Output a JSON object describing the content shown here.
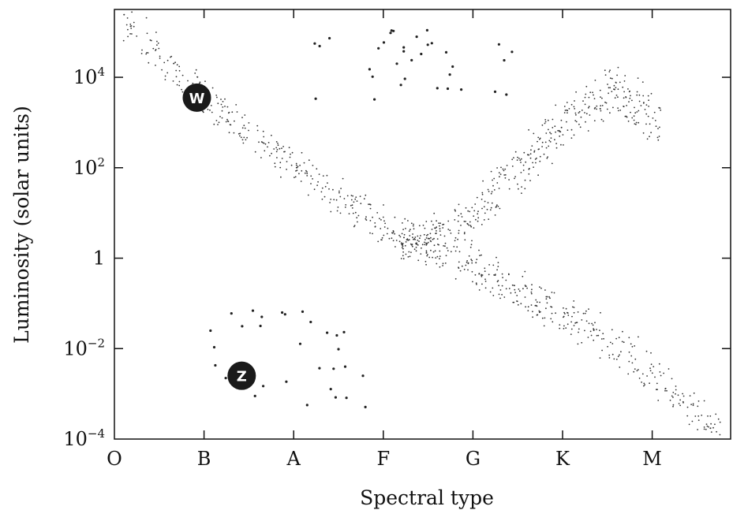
{
  "chart_data": {
    "type": "scatter",
    "title": "",
    "xlabel": "Spectral type",
    "ylabel": "Luminosity (solar units)",
    "x_categories": [
      "O",
      "B",
      "A",
      "F",
      "G",
      "K",
      "M"
    ],
    "x_range": [
      0,
      6.9
    ],
    "y_scale": "log",
    "y_range_log10": [
      -4,
      5.5
    ],
    "y_ticks": [
      {
        "base": "10",
        "exp": "4",
        "log10": 4
      },
      {
        "base": "10",
        "exp": "2",
        "log10": 2
      },
      {
        "base": "1",
        "exp": "",
        "log10": 0
      },
      {
        "base": "10",
        "exp": "−2",
        "log10": -2
      },
      {
        "base": "10",
        "exp": "−4",
        "log10": -4
      }
    ],
    "markers": [
      {
        "label": "W",
        "x": 0.92,
        "log10L": 3.55
      },
      {
        "label": "Z",
        "x": 1.42,
        "log10L": -2.6
      }
    ],
    "groups": [
      {
        "name": "supergiants",
        "x_range": [
          2.2,
          4.45
        ],
        "log10L_range": [
          3.5,
          5.1
        ],
        "count": 34,
        "size": "large"
      },
      {
        "name": "white-dwarfs",
        "x_range": [
          0.9,
          2.8
        ],
        "log10L_range": [
          -3.3,
          -1.0
        ],
        "count": 30,
        "size": "large"
      },
      {
        "name": "main-sequence",
        "path": [
          [
            0.1,
            5.3
          ],
          [
            1.0,
            3.5
          ],
          [
            2.0,
            2.0
          ],
          [
            3.0,
            0.7
          ],
          [
            4.0,
            -0.2
          ],
          [
            5.0,
            -1.2
          ],
          [
            5.8,
            -2.2
          ],
          [
            6.8,
            -4.0
          ]
        ],
        "count": 700,
        "size": "small"
      },
      {
        "name": "giants",
        "path": [
          [
            3.2,
            0.3
          ],
          [
            4.0,
            0.9
          ],
          [
            4.6,
            2.2
          ],
          [
            5.2,
            3.3
          ],
          [
            5.6,
            3.7
          ],
          [
            6.1,
            3.0
          ]
        ],
        "count": 430,
        "size": "small"
      }
    ]
  }
}
